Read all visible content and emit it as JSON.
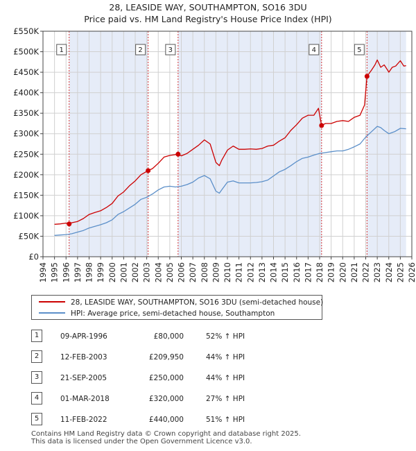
{
  "title_line1": "28, LEASIDE WAY, SOUTHAMPTON, SO16 3DU",
  "title_line2": "Price paid vs. HM Land Registry's House Price Index (HPI)",
  "colors": {
    "price_line": "#cc0000",
    "hpi_line": "#5b8fc9",
    "shade": "#e6ecf8",
    "grid": "#d0d0d0",
    "marker_line": "#d33333"
  },
  "legend": {
    "price_label": "28, LEASIDE WAY, SOUTHAMPTON, SO16 3DU (semi-detached house)",
    "hpi_label": "HPI: Average price, semi-detached house, Southampton"
  },
  "sales": [
    {
      "num": "1",
      "date": "09-APR-1996",
      "price": "£80,000",
      "hpi": "52% ↑ HPI"
    },
    {
      "num": "2",
      "date": "12-FEB-2003",
      "price": "£209,950",
      "hpi": "44% ↑ HPI"
    },
    {
      "num": "3",
      "date": "21-SEP-2005",
      "price": "£250,000",
      "hpi": "44% ↑ HPI"
    },
    {
      "num": "4",
      "date": "01-MAR-2018",
      "price": "£320,000",
      "hpi": "27% ↑ HPI"
    },
    {
      "num": "5",
      "date": "11-FEB-2022",
      "price": "£440,000",
      "hpi": "51% ↑ HPI"
    }
  ],
  "footer_line1": "Contains HM Land Registry data © Crown copyright and database right 2025.",
  "footer_line2": "This data is licensed under the Open Government Licence v3.0.",
  "chart_data": {
    "type": "line",
    "title": "28, LEASIDE WAY, SOUTHAMPTON, SO16 3DU — Price paid vs. HM Land Registry's House Price Index (HPI)",
    "xlim": [
      1994,
      2026
    ],
    "ylim": [
      0,
      550000
    ],
    "x_ticks": [
      1994,
      1995,
      1996,
      1997,
      1998,
      1999,
      2000,
      2001,
      2002,
      2003,
      2004,
      2005,
      2006,
      2007,
      2008,
      2009,
      2010,
      2011,
      2012,
      2013,
      2014,
      2015,
      2016,
      2017,
      2018,
      2019,
      2020,
      2021,
      2022,
      2023,
      2024,
      2025,
      2026
    ],
    "y_ticks": [
      {
        "value": 0,
        "label": "£0"
      },
      {
        "value": 50000,
        "label": "£50K"
      },
      {
        "value": 100000,
        "label": "£100K"
      },
      {
        "value": 150000,
        "label": "£150K"
      },
      {
        "value": 200000,
        "label": "£200K"
      },
      {
        "value": 250000,
        "label": "£250K"
      },
      {
        "value": 300000,
        "label": "£300K"
      },
      {
        "value": 350000,
        "label": "£350K"
      },
      {
        "value": 400000,
        "label": "£400K"
      },
      {
        "value": 450000,
        "label": "£450K"
      },
      {
        "value": 500000,
        "label": "£500K"
      },
      {
        "value": 550000,
        "label": "£550K"
      }
    ],
    "grid": true,
    "data_start": 1995.0,
    "data_end": 2025.5,
    "shaded_ranges": [
      [
        1996.27,
        2003.12
      ],
      [
        2005.72,
        2018.17
      ],
      [
        2022.11,
        2025.5
      ]
    ],
    "series": [
      {
        "name": "28, LEASIDE WAY, SOUTHAMPTON, SO16 3DU (semi-detached house)",
        "x": [
          1995.0,
          1995.5,
          1996.0,
          1996.27,
          1996.5,
          1997.0,
          1997.5,
          1998.0,
          1998.5,
          1999.0,
          1999.5,
          2000.0,
          2000.5,
          2001.0,
          2001.5,
          2002.0,
          2002.5,
          2003.0,
          2003.12,
          2003.5,
          2004.0,
          2004.5,
          2005.0,
          2005.72,
          2006.0,
          2006.5,
          2007.0,
          2007.5,
          2008.0,
          2008.5,
          2009.0,
          2009.3,
          2009.5,
          2010.0,
          2010.5,
          2011.0,
          2011.5,
          2012.0,
          2012.5,
          2013.0,
          2013.5,
          2014.0,
          2014.5,
          2015.0,
          2015.5,
          2016.0,
          2016.5,
          2017.0,
          2017.5,
          2017.9,
          2018.17,
          2018.5,
          2019.0,
          2019.5,
          2020.0,
          2020.5,
          2021.0,
          2021.5,
          2021.9,
          2022.11,
          2022.5,
          2022.8,
          2023.0,
          2023.3,
          2023.6,
          2023.9,
          2024.0,
          2024.3,
          2024.6,
          2025.0,
          2025.3,
          2025.5
        ],
        "values": [
          79000,
          80000,
          82000,
          80000,
          83000,
          86000,
          93000,
          103000,
          108000,
          112000,
          120000,
          130000,
          148000,
          158000,
          173000,
          185000,
          200000,
          208000,
          209950,
          215000,
          228000,
          243000,
          247000,
          250000,
          246000,
          252000,
          262000,
          272000,
          285000,
          275000,
          230000,
          222000,
          235000,
          260000,
          270000,
          262000,
          262000,
          263000,
          262000,
          264000,
          270000,
          272000,
          282000,
          290000,
          308000,
          322000,
          338000,
          345000,
          345000,
          362000,
          320000,
          325000,
          325000,
          330000,
          332000,
          330000,
          340000,
          345000,
          370000,
          440000,
          455000,
          468000,
          480000,
          462000,
          468000,
          455000,
          450000,
          462000,
          465000,
          478000,
          465000,
          466000
        ]
      },
      {
        "name": "HPI: Average price, semi-detached house, Southampton",
        "x": [
          1995.0,
          1995.5,
          1996.0,
          1996.5,
          1997.0,
          1997.5,
          1998.0,
          1998.5,
          1999.0,
          1999.5,
          2000.0,
          2000.5,
          2001.0,
          2001.5,
          2002.0,
          2002.5,
          2003.0,
          2003.5,
          2004.0,
          2004.5,
          2005.0,
          2005.5,
          2006.0,
          2006.5,
          2007.0,
          2007.5,
          2008.0,
          2008.5,
          2009.0,
          2009.3,
          2009.5,
          2010.0,
          2010.5,
          2011.0,
          2011.5,
          2012.0,
          2012.5,
          2013.0,
          2013.5,
          2014.0,
          2014.5,
          2015.0,
          2015.5,
          2016.0,
          2016.5,
          2017.0,
          2017.5,
          2018.0,
          2018.5,
          2019.0,
          2019.5,
          2020.0,
          2020.5,
          2021.0,
          2021.5,
          2022.0,
          2022.5,
          2023.0,
          2023.3,
          2023.6,
          2024.0,
          2024.5,
          2025.0,
          2025.5
        ],
        "values": [
          52000,
          53000,
          54000,
          56000,
          60000,
          64000,
          70000,
          74000,
          78000,
          83000,
          90000,
          103000,
          110000,
          119000,
          128000,
          140000,
          145000,
          153000,
          163000,
          170000,
          172000,
          170000,
          172000,
          176000,
          182000,
          192000,
          198000,
          190000,
          160000,
          155000,
          163000,
          182000,
          185000,
          180000,
          180000,
          180000,
          181000,
          183000,
          187000,
          197000,
          207000,
          213000,
          222000,
          232000,
          240000,
          243000,
          248000,
          252000,
          254000,
          256000,
          258000,
          258000,
          262000,
          268000,
          275000,
          292000,
          305000,
          318000,
          315000,
          308000,
          300000,
          305000,
          313000,
          312000
        ]
      }
    ],
    "markers": [
      {
        "label": "1",
        "x": 1996.27,
        "y": 80000
      },
      {
        "label": "2",
        "x": 2003.12,
        "y": 209950
      },
      {
        "label": "3",
        "x": 2005.72,
        "y": 250000
      },
      {
        "label": "4",
        "x": 2018.17,
        "y": 320000
      },
      {
        "label": "5",
        "x": 2022.11,
        "y": 440000
      }
    ]
  }
}
